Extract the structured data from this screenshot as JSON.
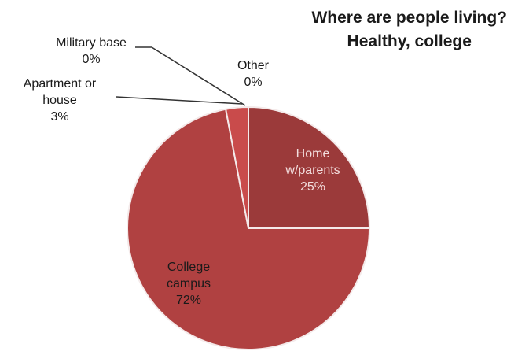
{
  "chart_data": {
    "type": "pie",
    "title_lines": [
      "Where are people living?",
      "Healthy, college"
    ],
    "start_angle_deg": 0,
    "direction": "clockwise",
    "slices": [
      {
        "label_lines": [
          "Home",
          "w/parents"
        ],
        "value": 25,
        "value_label": "25%",
        "color": "#9b3a3a",
        "label_position": "inside"
      },
      {
        "label_lines": [
          "College",
          "campus"
        ],
        "value": 72,
        "value_label": "72%",
        "color": "#b04141",
        "label_position": "inside"
      },
      {
        "label_lines": [
          "Apartment or",
          "house"
        ],
        "value": 3,
        "value_label": "3%",
        "color": "#c94b4b",
        "label_position": "outside"
      },
      {
        "label_lines": [
          "Military base"
        ],
        "value": 0,
        "value_label": "0%",
        "color": "#d96a6a",
        "label_position": "outside"
      },
      {
        "label_lines": [
          "Other"
        ],
        "value": 0,
        "value_label": "0%",
        "color": "#e08080",
        "label_position": "outside"
      }
    ],
    "legend": "none"
  }
}
